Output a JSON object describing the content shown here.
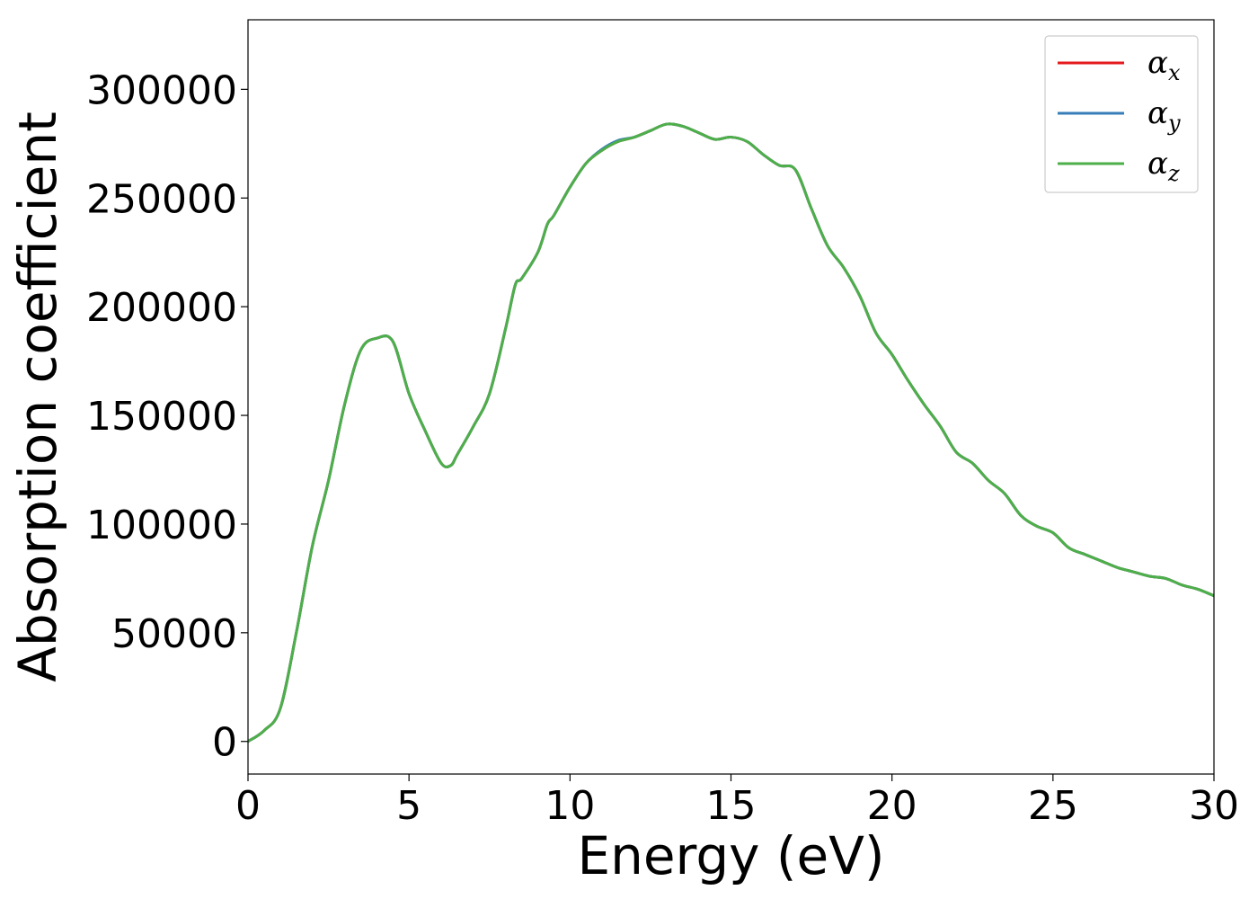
{
  "chart_data": {
    "type": "line",
    "title": "",
    "xlabel": "Energy (eV)",
    "ylabel": "Absorption coefficient",
    "xlim": [
      0,
      30
    ],
    "ylim": [
      -15000,
      332000
    ],
    "xticks": [
      0,
      5,
      10,
      15,
      20,
      25,
      30
    ],
    "yticks": [
      0,
      50000,
      100000,
      150000,
      200000,
      250000,
      300000
    ],
    "grid": false,
    "legend": "top-right",
    "series": [
      {
        "name": "x",
        "symbol": "α",
        "color": "#e41a1c",
        "x": [
          0,
          0.5,
          1,
          1.5,
          2,
          2.5,
          3,
          3.5,
          4,
          4.5,
          5,
          5.5,
          6,
          6.3,
          6.5,
          7,
          7.5,
          8,
          8.3,
          8.5,
          9,
          9.3,
          9.5,
          10,
          10.5,
          11,
          11.5,
          12,
          12.5,
          13,
          13.5,
          14,
          14.5,
          15,
          15.5,
          16,
          16.5,
          17,
          17.5,
          18,
          18.5,
          19,
          19.5,
          20,
          20.5,
          21,
          21.5,
          22,
          22.5,
          23,
          23.5,
          24,
          24.5,
          25,
          25.5,
          26,
          26.5,
          27,
          27.5,
          28,
          28.5,
          29,
          29.5,
          30
        ],
        "values": [
          0,
          5000,
          15000,
          50000,
          90000,
          120000,
          155000,
          180000,
          185500,
          184000,
          160000,
          143000,
          128000,
          127000,
          132000,
          145000,
          160000,
          190000,
          210000,
          213000,
          225000,
          238000,
          242000,
          255000,
          266000,
          272000,
          276000,
          278000,
          281000,
          284000,
          283000,
          280000,
          277000,
          278000,
          276000,
          270000,
          265000,
          263000,
          245000,
          228000,
          218000,
          205000,
          188000,
          178000,
          166000,
          155000,
          145000,
          133000,
          128000,
          120000,
          114000,
          104000,
          99000,
          96000,
          89000,
          86000,
          83000,
          80000,
          78000,
          76000,
          75000,
          72000,
          70000,
          67000
        ]
      },
      {
        "name": "y",
        "symbol": "α",
        "color": "#377eb8",
        "x": [
          0,
          0.5,
          1,
          1.5,
          2,
          2.5,
          3,
          3.5,
          4,
          4.5,
          5,
          5.5,
          6,
          6.3,
          6.5,
          7,
          7.5,
          8,
          8.3,
          8.5,
          9,
          9.3,
          9.5,
          10,
          10.5,
          11,
          11.5,
          12,
          12.5,
          13,
          13.5,
          14,
          14.5,
          15,
          15.5,
          16,
          16.5,
          17,
          17.5,
          18,
          18.5,
          19,
          19.5,
          20,
          20.5,
          21,
          21.5,
          22,
          22.5,
          23,
          23.5,
          24,
          24.5,
          25,
          25.5,
          26,
          26.5,
          27,
          27.5,
          28,
          28.5,
          29,
          29.5,
          30
        ],
        "values": [
          0,
          5000,
          15000,
          50000,
          90000,
          120000,
          155000,
          180000,
          185500,
          184000,
          160000,
          143000,
          128000,
          127000,
          132000,
          145000,
          160000,
          190000,
          210000,
          213000,
          225000,
          238000,
          242000,
          255000,
          266000,
          272500,
          276500,
          278000,
          281000,
          284000,
          283000,
          280000,
          277000,
          278000,
          276000,
          270000,
          265000,
          263000,
          245000,
          228000,
          218000,
          205000,
          188000,
          178000,
          166000,
          155000,
          145000,
          133000,
          128000,
          120000,
          114000,
          104000,
          99000,
          96000,
          89000,
          86000,
          83000,
          80000,
          78000,
          76000,
          75000,
          72000,
          70000,
          67000
        ]
      },
      {
        "name": "z",
        "symbol": "α",
        "color": "#4daf4a",
        "x": [
          0,
          0.5,
          1,
          1.5,
          2,
          2.5,
          3,
          3.5,
          4,
          4.5,
          5,
          5.5,
          6,
          6.3,
          6.5,
          7,
          7.5,
          8,
          8.3,
          8.5,
          9,
          9.3,
          9.5,
          10,
          10.5,
          11,
          11.5,
          12,
          12.5,
          13,
          13.5,
          14,
          14.5,
          15,
          15.5,
          16,
          16.5,
          17,
          17.5,
          18,
          18.5,
          19,
          19.5,
          20,
          20.5,
          21,
          21.5,
          22,
          22.5,
          23,
          23.5,
          24,
          24.5,
          25,
          25.5,
          26,
          26.5,
          27,
          27.5,
          28,
          28.5,
          29,
          29.5,
          30
        ],
        "values": [
          0,
          5000,
          15000,
          50000,
          90000,
          120000,
          155000,
          180000,
          185500,
          184000,
          160000,
          143000,
          128000,
          127000,
          132000,
          145000,
          160000,
          190000,
          210000,
          213000,
          225000,
          238000,
          242000,
          255000,
          266000,
          272000,
          276000,
          278000,
          281000,
          284000,
          283000,
          280000,
          277000,
          278000,
          276000,
          270000,
          265000,
          263000,
          245000,
          228000,
          218000,
          205000,
          188000,
          178000,
          166000,
          155000,
          145000,
          133000,
          128000,
          120000,
          114000,
          104000,
          99000,
          96000,
          89000,
          86000,
          83000,
          80000,
          78000,
          76000,
          75000,
          72000,
          70000,
          67000
        ]
      }
    ]
  }
}
